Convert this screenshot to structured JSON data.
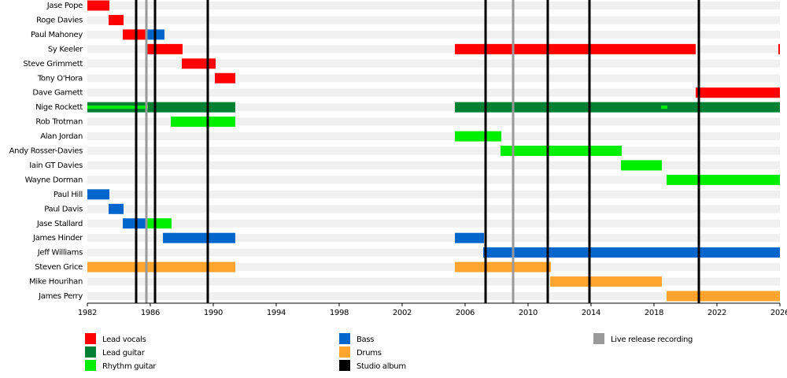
{
  "chart_data": {
    "type": "timeline",
    "xlim": [
      1982,
      2026
    ],
    "xticks": [
      1982,
      1986,
      1990,
      1994,
      1998,
      2002,
      2006,
      2010,
      2014,
      2018,
      2022,
      2026
    ],
    "roles": [
      {
        "name": "Lead vocals",
        "color": "#ff0000"
      },
      {
        "name": "Lead guitar",
        "color": "#008033"
      },
      {
        "name": "Rhythm guitar",
        "color": "#00ee00"
      },
      {
        "name": "Bass",
        "color": "#0066cc"
      },
      {
        "name": "Drums",
        "color": "#ffa530"
      }
    ],
    "events": [
      {
        "name": "Studio album",
        "color": "#000000",
        "values": [
          1985.1,
          1986.3,
          1989.65,
          2007.3,
          2011.25,
          2013.9,
          2020.85
        ]
      },
      {
        "name": "Live release recording",
        "color": "#999999",
        "values": [
          1985.75,
          2009.05
        ]
      }
    ],
    "members": [
      {
        "name": "Jase Pope",
        "periods": [
          {
            "role": "Lead vocals",
            "start": 1982,
            "end": 1983.4
          }
        ]
      },
      {
        "name": "Roge Davies",
        "periods": [
          {
            "role": "Lead vocals",
            "start": 1983.35,
            "end": 1984.3
          }
        ]
      },
      {
        "name": "Paul Mahoney",
        "periods": [
          {
            "role": "Lead vocals",
            "start": 1984.25,
            "end": 1985.8
          },
          {
            "role": "Bass",
            "start": 1985.8,
            "end": 1986.9
          }
        ]
      },
      {
        "name": "Sy Keeler",
        "periods": [
          {
            "role": "Lead vocals",
            "start": 1985.8,
            "end": 1988.05
          },
          {
            "role": "Lead vocals",
            "start": 2005.35,
            "end": 2020.65
          },
          {
            "role": "Lead vocals",
            "start": 2025.9,
            "end": 2026
          }
        ]
      },
      {
        "name": "Steve Grimmett",
        "periods": [
          {
            "role": "Lead vocals",
            "start": 1988,
            "end": 1990.15
          }
        ]
      },
      {
        "name": "Tony O'Hora",
        "periods": [
          {
            "role": "Lead vocals",
            "start": 1990.1,
            "end": 1991.4
          }
        ]
      },
      {
        "name": "Dave Garnett",
        "periods": [
          {
            "role": "Lead vocals",
            "start": 2020.65,
            "end": 2026
          }
        ]
      },
      {
        "name": "Nige Rockett",
        "periods": [
          {
            "role": "Lead guitar",
            "start": 1982,
            "end": 1991.4
          },
          {
            "role": "Rhythm guitar",
            "start": 1982,
            "end": 1985.85
          },
          {
            "role": "Lead guitar",
            "start": 2005.35,
            "end": 2026
          },
          {
            "role": "Rhythm guitar",
            "start": 2018.45,
            "end": 2018.85
          }
        ]
      },
      {
        "name": "Rob Trotman",
        "periods": [
          {
            "role": "Rhythm guitar",
            "start": 1987.3,
            "end": 1991.4
          }
        ]
      },
      {
        "name": "Alan Jordan",
        "periods": [
          {
            "role": "Rhythm guitar",
            "start": 2005.35,
            "end": 2008.3
          }
        ]
      },
      {
        "name": "Andy Rosser-Davies",
        "periods": [
          {
            "role": "Rhythm guitar",
            "start": 2008.25,
            "end": 2015.95
          }
        ]
      },
      {
        "name": "Iain GT Davies",
        "periods": [
          {
            "role": "Rhythm guitar",
            "start": 2015.9,
            "end": 2018.5
          }
        ]
      },
      {
        "name": "Wayne Dorman",
        "periods": [
          {
            "role": "Rhythm guitar",
            "start": 2018.8,
            "end": 2026
          }
        ]
      },
      {
        "name": "Paul Hill",
        "periods": [
          {
            "role": "Bass",
            "start": 1982,
            "end": 1983.4
          }
        ]
      },
      {
        "name": "Paul Davis",
        "periods": [
          {
            "role": "Bass",
            "start": 1983.35,
            "end": 1984.3
          }
        ]
      },
      {
        "name": "Jase Stallard",
        "periods": [
          {
            "role": "Bass",
            "start": 1984.25,
            "end": 1985.8
          },
          {
            "role": "Rhythm guitar",
            "start": 1985.8,
            "end": 1987.35
          }
        ]
      },
      {
        "name": "James Hinder",
        "periods": [
          {
            "role": "Bass",
            "start": 1986.8,
            "end": 1991.4
          },
          {
            "role": "Bass",
            "start": 2005.35,
            "end": 2007.2
          }
        ]
      },
      {
        "name": "Jeff Williams",
        "periods": [
          {
            "role": "Bass",
            "start": 2007.15,
            "end": 2026
          }
        ]
      },
      {
        "name": "Steven Grice",
        "periods": [
          {
            "role": "Drums",
            "start": 1982,
            "end": 1991.4
          },
          {
            "role": "Drums",
            "start": 2005.35,
            "end": 2011.45
          }
        ]
      },
      {
        "name": "Mike Hourihan",
        "periods": [
          {
            "role": "Drums",
            "start": 2011.4,
            "end": 2018.5
          }
        ]
      },
      {
        "name": "James Perry",
        "periods": [
          {
            "role": "Drums",
            "start": 2018.8,
            "end": 2026
          }
        ]
      }
    ]
  }
}
